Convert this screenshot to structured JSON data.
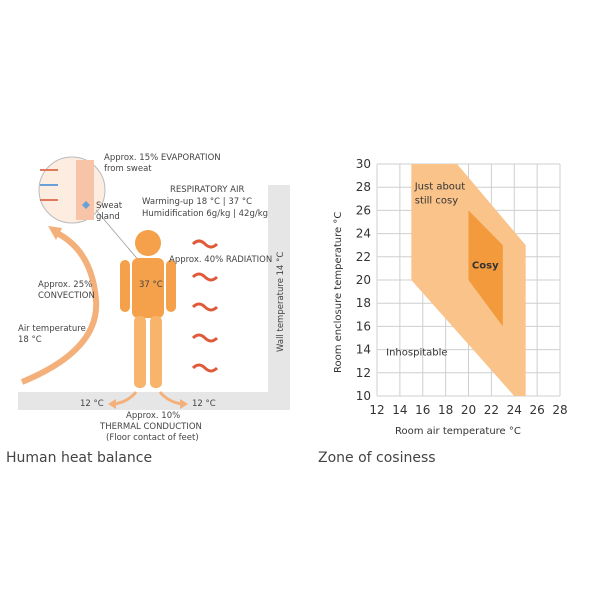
{
  "left_panel": {
    "caption": "Human heat balance",
    "evaporation": [
      "Approx. 15% EVAPORATION",
      "from sweat"
    ],
    "sweat_gland": [
      "Sweat",
      "gland"
    ],
    "respiratory": [
      "RESPIRATORY AIR",
      "Warming-up 18 °C | 37 °C",
      "Humidification 6g/kg | 42g/kg"
    ],
    "radiation": "Approx. 40% RADIATION",
    "convection": [
      "Approx. 25%",
      "CONVECTION"
    ],
    "air_temperature": [
      "Air temperature",
      "18 °C"
    ],
    "body_temp": "37 °C",
    "wall_temperature": "Wall temperature 14 °C",
    "floor_left": "12 °C",
    "floor_right": "12 °C",
    "conduction": [
      "Approx. 10%",
      "THERMAL CONDUCTION",
      "(Floor contact of feet)"
    ],
    "colors": {
      "body": "#f5a04a",
      "arrow": "#f08a3a",
      "wavy": "#e05a3a",
      "wall": "#e6e6e6"
    }
  },
  "right_panel": {
    "caption": "Zone of cosiness",
    "chart_data": {
      "type": "area",
      "xlabel": "Room air temperature °C",
      "ylabel": "Room enclosure temperature °C",
      "xlim": [
        12,
        28
      ],
      "ylim": [
        10,
        30
      ],
      "x_ticks": [
        12,
        14,
        16,
        18,
        20,
        22,
        24,
        26,
        28
      ],
      "y_ticks": [
        10,
        12,
        14,
        16,
        18,
        20,
        22,
        24,
        26,
        28,
        30
      ],
      "grid": true,
      "zones": [
        {
          "name": "Just about still cosy",
          "color": "#f9c38a",
          "polygon": [
            [
              15,
              30
            ],
            [
              19,
              30
            ],
            [
              25,
              23
            ],
            [
              25,
              10
            ],
            [
              24,
              10
            ],
            [
              15,
              20
            ]
          ]
        },
        {
          "name": "Cosy",
          "color": "#f29a3c",
          "polygon": [
            [
              20,
              26
            ],
            [
              23,
              23
            ],
            [
              23,
              16
            ],
            [
              20,
              20
            ]
          ]
        }
      ],
      "labels": [
        {
          "text": "Just about",
          "x": 15.3,
          "y": 27.8
        },
        {
          "text": "still cosy",
          "x": 15.3,
          "y": 26.6
        },
        {
          "text": "Cosy",
          "x": 20.3,
          "y": 21.0
        },
        {
          "text": "Inhospitable",
          "x": 12.8,
          "y": 13.5
        }
      ]
    }
  }
}
